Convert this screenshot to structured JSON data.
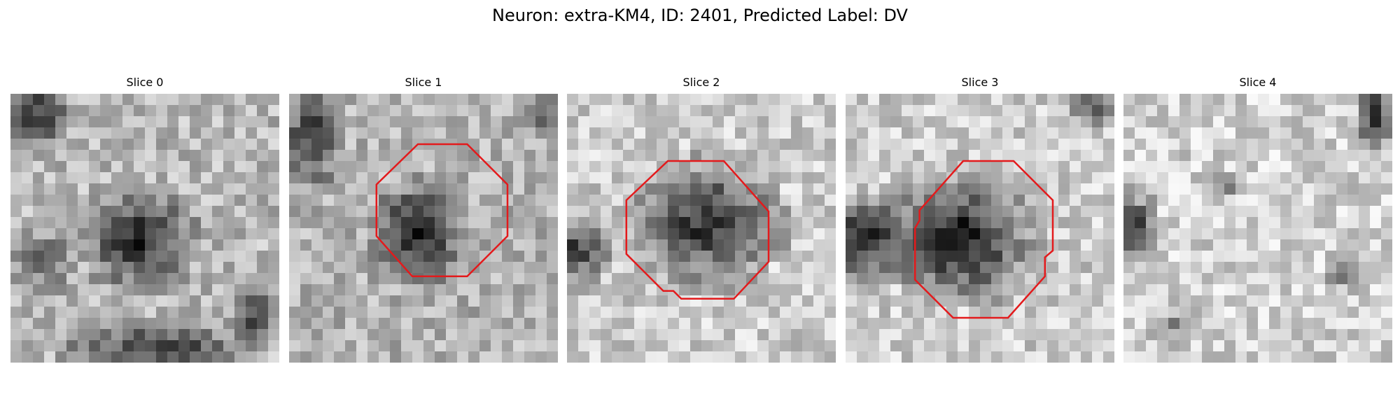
{
  "figure": {
    "title": "Neuron: extra-KM4, ID: 2401, Predicted Label: DV"
  },
  "panels": [
    {
      "title": "Slice 0"
    },
    {
      "title": "Slice 1"
    },
    {
      "title": "Slice 2"
    },
    {
      "title": "Slice 3"
    },
    {
      "title": "Slice 4"
    }
  ],
  "colors": {
    "roi_outline": "#e31a1c",
    "colormap": "grayscale"
  }
}
